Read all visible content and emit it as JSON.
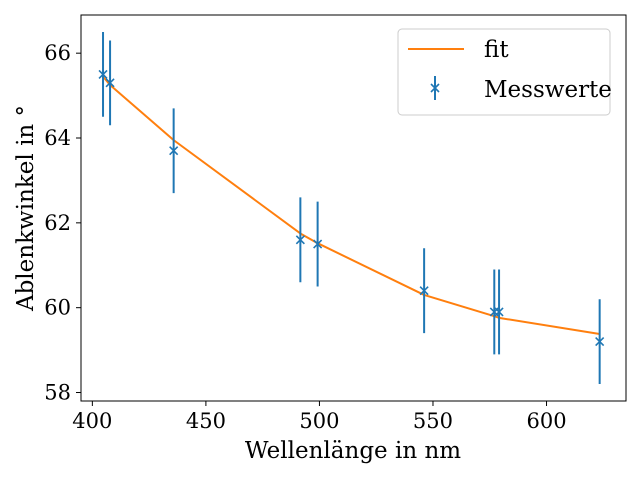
{
  "chart_data": {
    "type": "scatter",
    "title": "",
    "xlabel": "Wellenlänge in nm",
    "ylabel": "Ablenkwinkel in °",
    "xlim": [
      395,
      635
    ],
    "ylim": [
      57.8,
      66.9
    ],
    "xticks": [
      400,
      450,
      500,
      550,
      600
    ],
    "yticks": [
      58,
      60,
      62,
      64,
      66
    ],
    "grid": false,
    "legend_position": "top-right",
    "series": [
      {
        "name": "fit",
        "kind": "line",
        "color": "#ff7f0e",
        "x": [
          404.7,
          407.8,
          435.8,
          491.6,
          499.2,
          546.1,
          577.0,
          579.1,
          623.4
        ],
        "y": [
          65.45,
          65.25,
          63.95,
          61.75,
          61.52,
          60.3,
          59.8,
          59.76,
          59.38
        ]
      },
      {
        "name": "Messwerte",
        "kind": "errorbar",
        "marker": "x",
        "color": "#1f77b4",
        "x": [
          404.7,
          407.8,
          435.8,
          491.6,
          499.2,
          546.1,
          577.0,
          579.1,
          623.4
        ],
        "y": [
          65.5,
          65.3,
          63.7,
          61.6,
          61.5,
          60.4,
          59.9,
          59.9,
          59.2
        ],
        "yerr": [
          1,
          1,
          1,
          1,
          1,
          1,
          1,
          1,
          1
        ]
      }
    ]
  }
}
